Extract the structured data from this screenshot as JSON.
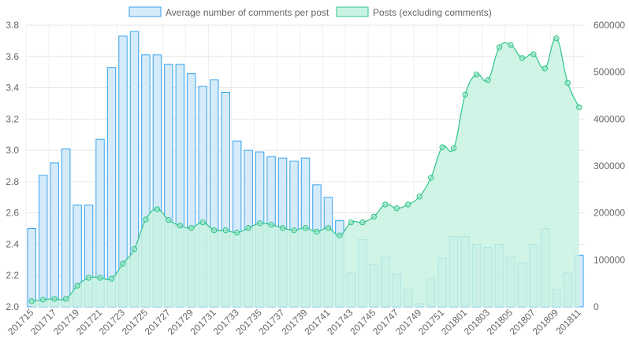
{
  "chart_data": {
    "type": "bar",
    "categories": [
      "201715",
      "201716",
      "201717",
      "201718",
      "201719",
      "201720",
      "201721",
      "201722",
      "201723",
      "201724",
      "201725",
      "201726",
      "201727",
      "201728",
      "201729",
      "201730",
      "201731",
      "201732",
      "201733",
      "201734",
      "201735",
      "201736",
      "201737",
      "201738",
      "201739",
      "201740",
      "201741",
      "201742",
      "201743",
      "201744",
      "201745",
      "201746",
      "201747",
      "201748",
      "201749",
      "201750",
      "201751",
      "201752",
      "201801",
      "201802",
      "201803",
      "201804",
      "201805",
      "201806",
      "201807",
      "201808",
      "201809",
      "201810",
      "201811"
    ],
    "x_tick_labels": [
      "201715",
      "201717",
      "201719",
      "201721",
      "201723",
      "201725",
      "201727",
      "201729",
      "201731",
      "201733",
      "201735",
      "201737",
      "201739",
      "201741",
      "201743",
      "201745",
      "201747",
      "201749",
      "201751",
      "201801",
      "201803",
      "201805",
      "201807",
      "201809",
      "201811"
    ],
    "series": [
      {
        "name": "Average number of comments per post",
        "type": "bar",
        "axis": "left",
        "color": "#36a2eb",
        "fill": "#d6ebfa",
        "values": [
          2.5,
          2.84,
          2.92,
          3.01,
          2.65,
          2.65,
          3.07,
          3.53,
          3.73,
          3.76,
          3.61,
          3.61,
          3.55,
          3.55,
          3.49,
          3.41,
          3.45,
          3.37,
          3.06,
          3.0,
          2.99,
          2.96,
          2.95,
          2.93,
          2.95,
          2.78,
          2.7,
          2.55,
          2.22,
          2.43,
          2.27,
          2.32,
          2.21,
          2.12,
          2.02,
          2.18,
          2.31,
          2.45,
          2.45,
          2.4,
          2.38,
          2.4,
          2.32,
          2.28,
          2.4,
          2.5,
          2.11,
          2.22,
          2.33
        ]
      },
      {
        "name": "Posts (excluding comments)",
        "type": "area",
        "axis": "right",
        "color": "#2fc68a",
        "fill": "#c8f2e2",
        "values": [
          12000,
          15000,
          17000,
          17000,
          45000,
          62000,
          62000,
          60000,
          92000,
          123000,
          186000,
          208000,
          185000,
          173000,
          168000,
          180000,
          163000,
          163000,
          158000,
          168000,
          178000,
          175000,
          168000,
          163000,
          168000,
          160000,
          168000,
          152000,
          180000,
          180000,
          192000,
          218000,
          210000,
          218000,
          235000,
          275000,
          340000,
          338000,
          452000,
          495000,
          483000,
          553000,
          558000,
          530000,
          538000,
          508000,
          572000,
          477000,
          425000
        ]
      }
    ],
    "y_left": {
      "ylim": [
        2.0,
        3.8
      ],
      "ticks": [
        "2.0",
        "2.2",
        "2.4",
        "2.6",
        "2.8",
        "3.0",
        "3.2",
        "3.4",
        "3.6",
        "3.8"
      ]
    },
    "y_right": {
      "ylim": [
        0,
        600000
      ],
      "ticks": [
        "0",
        "100000",
        "200000",
        "300000",
        "400000",
        "500000",
        "600000"
      ]
    },
    "grid": true,
    "legend_position": "top-center"
  }
}
